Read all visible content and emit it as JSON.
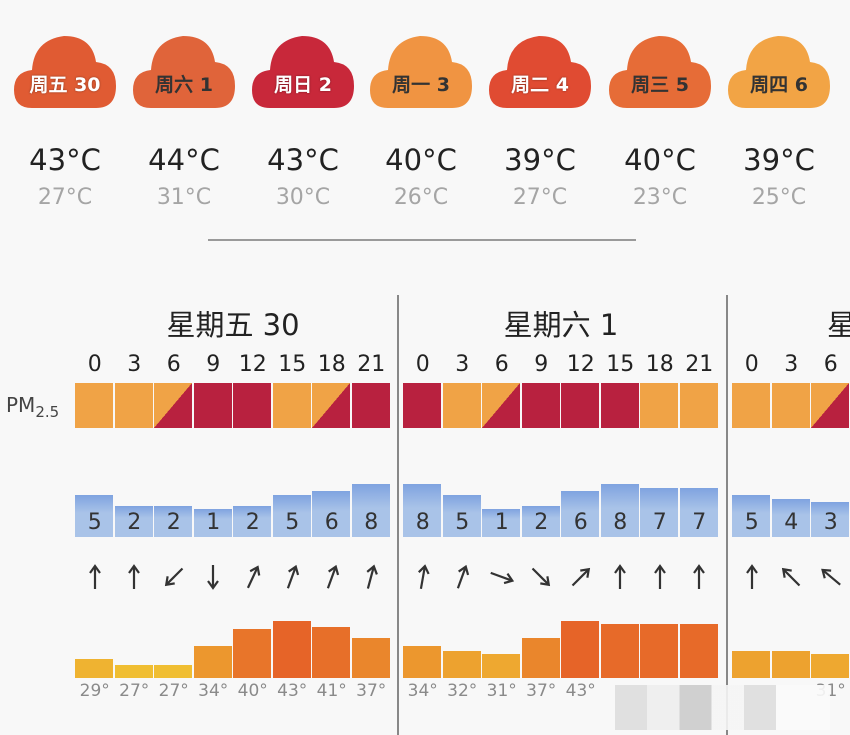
{
  "colors": {
    "pm_good": "#f0a346",
    "pm_bad": "#b8213f",
    "wind": "#a9c3e8",
    "wind_top": "#7fa3e0"
  },
  "forecast": [
    {
      "label": "周五 30",
      "high": "43°C",
      "low": "27°C",
      "color": "#e05b33"
    },
    {
      "label": "周六 1",
      "high": "44°C",
      "low": "31°C",
      "color": "#e0643a"
    },
    {
      "label": "周日 2",
      "high": "43°C",
      "low": "30°C",
      "color": "#c8283a"
    },
    {
      "label": "周一 3",
      "high": "40°C",
      "low": "26°C",
      "color": "#f09442"
    },
    {
      "label": "周二 4",
      "high": "39°C",
      "low": "27°C",
      "color": "#e04b32"
    },
    {
      "label": "周三 5",
      "high": "40°C",
      "low": "23°C",
      "color": "#e66c37"
    },
    {
      "label": "周四 6",
      "high": "39°C",
      "low": "25°C",
      "color": "#f2a445"
    }
  ],
  "pm_label": "PM",
  "pm_sub": "2.5",
  "days": [
    {
      "title": "星期五 30",
      "hours": [
        "0",
        "3",
        "6",
        "9",
        "12",
        "15",
        "18",
        "21"
      ],
      "pm": [
        "good",
        "good",
        "mixed",
        "bad",
        "bad",
        "good",
        "mixed",
        "bad"
      ],
      "wind": [
        "5",
        "2",
        "2",
        "1",
        "2",
        "5",
        "6",
        "8"
      ],
      "wind_dir": [
        0,
        0,
        225,
        180,
        25,
        20,
        20,
        15
      ],
      "temps": [
        "29°",
        "27°",
        "27°",
        "34°",
        "40°",
        "43°",
        "41°",
        "37°"
      ]
    },
    {
      "title": "星期六 1",
      "hours": [
        "0",
        "3",
        "6",
        "9",
        "12",
        "15",
        "18",
        "21"
      ],
      "pm": [
        "bad",
        "good",
        "mixed",
        "bad",
        "bad",
        "bad",
        "good",
        "good"
      ],
      "wind": [
        "8",
        "5",
        "1",
        "2",
        "6",
        "8",
        "7",
        "7"
      ],
      "wind_dir": [
        10,
        20,
        110,
        135,
        45,
        0,
        0,
        0
      ],
      "temps": [
        "34°",
        "32°",
        "31°",
        "37°",
        "43°",
        "",
        "",
        ""
      ]
    },
    {
      "title": "星",
      "hours": [
        "0",
        "3",
        "6"
      ],
      "pm": [
        "good",
        "good",
        "mixed"
      ],
      "wind": [
        "5",
        "4",
        "3"
      ],
      "wind_dir": [
        0,
        -45,
        -50
      ],
      "temps": [
        "",
        "",
        "31°"
      ]
    }
  ]
}
